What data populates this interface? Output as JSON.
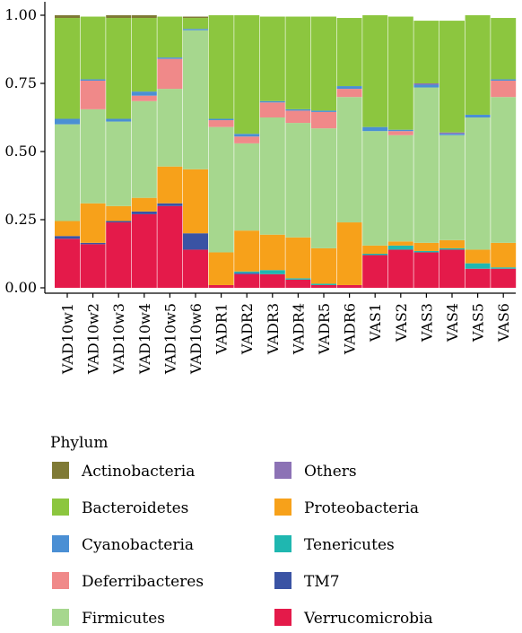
{
  "chart_data": {
    "type": "bar",
    "stacked": true,
    "categories": [
      "VAD10w1",
      "VAD10w2",
      "VAD10w3",
      "VAD10w4",
      "VAD10w5",
      "VAD10w6",
      "VADR1",
      "VADR2",
      "VADR3",
      "VADR4",
      "VADR5",
      "VADR6",
      "VAS1",
      "VAS2",
      "VAS3",
      "VAS4",
      "VAS5",
      "VAS6"
    ],
    "ylim": [
      0,
      1
    ],
    "yticks": [
      "0.00",
      "0.25",
      "0.50",
      "0.75",
      "1.00"
    ],
    "ytick_values": [
      0,
      0.25,
      0.5,
      0.75,
      1.0
    ],
    "grid": false,
    "legend_title": "Phylum",
    "legend_position": "bottom",
    "legend_order": [
      "Actinobacteria",
      "Others",
      "Bacteroidetes",
      "Proteobacteria",
      "Cyanobacteria",
      "Tenericutes",
      "Deferribacteres",
      "TM7",
      "Firmicutes",
      "Verrucomicrobia"
    ],
    "series": [
      {
        "name": "Verrucomicrobia",
        "color": "#e41a4a",
        "values": [
          0.18,
          0.16,
          0.24,
          0.27,
          0.3,
          0.14,
          0.01,
          0.05,
          0.05,
          0.03,
          0.01,
          0.01,
          0.12,
          0.14,
          0.13,
          0.14,
          0.07,
          0.07
        ]
      },
      {
        "name": "TM7",
        "color": "#3a53a4",
        "values": [
          0.01,
          0.005,
          0.005,
          0.01,
          0.01,
          0.06,
          0,
          0.005,
          0,
          0,
          0,
          0,
          0,
          0,
          0,
          0,
          0,
          0
        ]
      },
      {
        "name": "Tenericutes",
        "color": "#1fb7b0",
        "values": [
          0,
          0,
          0,
          0,
          0,
          0,
          0,
          0.005,
          0.015,
          0.005,
          0.005,
          0,
          0.005,
          0.015,
          0.005,
          0.005,
          0.02,
          0.005
        ]
      },
      {
        "name": "Proteobacteria",
        "color": "#f7a11a",
        "values": [
          0.055,
          0.145,
          0.055,
          0.05,
          0.135,
          0.235,
          0.12,
          0.15,
          0.13,
          0.15,
          0.13,
          0.23,
          0.03,
          0.015,
          0.03,
          0.03,
          0.05,
          0.09
        ]
      },
      {
        "name": "Firmicutes",
        "color": "#a6d78e",
        "values": [
          0.355,
          0.345,
          0.31,
          0.355,
          0.285,
          0.51,
          0.46,
          0.32,
          0.43,
          0.42,
          0.44,
          0.46,
          0.42,
          0.39,
          0.57,
          0.385,
          0.485,
          0.535
        ]
      },
      {
        "name": "Deferribacteres",
        "color": "#f08989",
        "values": [
          0,
          0.105,
          0,
          0.02,
          0.11,
          0,
          0.025,
          0.025,
          0.055,
          0.045,
          0.06,
          0.03,
          0,
          0.015,
          0,
          0,
          0,
          0.06
        ]
      },
      {
        "name": "Cyanobacteria",
        "color": "#4a8fd4",
        "values": [
          0.02,
          0.005,
          0.01,
          0.015,
          0.005,
          0.005,
          0.005,
          0.01,
          0.005,
          0.005,
          0.005,
          0.01,
          0.015,
          0.005,
          0.01,
          0.005,
          0.01,
          0.005
        ]
      },
      {
        "name": "Others",
        "color": "#8c72b5",
        "values": [
          0,
          0,
          0,
          0,
          0,
          0,
          0,
          0,
          0,
          0,
          0,
          0,
          0,
          0,
          0.005,
          0.005,
          0,
          0
        ]
      },
      {
        "name": "Bacteroidetes",
        "color": "#8cc63f",
        "values": [
          0.37,
          0.23,
          0.37,
          0.27,
          0.15,
          0.04,
          0.38,
          0.435,
          0.31,
          0.34,
          0.345,
          0.25,
          0.41,
          0.415,
          0.23,
          0.41,
          0.365,
          0.225
        ]
      },
      {
        "name": "Actinobacteria",
        "color": "#7f7a35",
        "values": [
          0.01,
          0,
          0.01,
          0.01,
          0,
          0.005,
          0,
          0,
          0,
          0,
          0,
          0,
          0,
          0,
          0,
          0,
          0,
          0
        ]
      }
    ]
  }
}
